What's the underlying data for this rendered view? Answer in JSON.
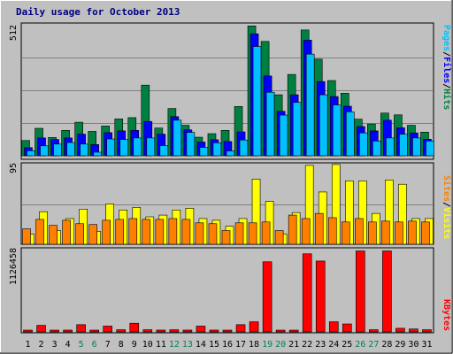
{
  "title": "Daily usage for October 2013",
  "colors": {
    "background": "#c0c0c0",
    "panel": "#c0c0c0",
    "grid": "#808080",
    "pages": "#008040",
    "files": "#0000ff",
    "hits": "#00c0ff",
    "visits": "#ffff00",
    "sites": "#ff8000",
    "kbytes": "#ff0000",
    "weekday": "#000000",
    "weekend": "#00805c",
    "title": "#000080"
  },
  "legend": {
    "top": [
      {
        "label": "Pages",
        "color": "#00c0ff"
      },
      {
        "label": "/",
        "color": "#000000"
      },
      {
        "label": "Files",
        "color": "#0000ff"
      },
      {
        "label": "/",
        "color": "#000000"
      },
      {
        "label": "Hits",
        "color": "#008040"
      }
    ],
    "mid": [
      {
        "label": "Sites",
        "color": "#ff8000"
      },
      {
        "label": "/",
        "color": "#000000"
      },
      {
        "label": "Visits",
        "color": "#ffff00"
      }
    ],
    "bottom": [
      {
        "label": "KBytes",
        "color": "#ff0000"
      }
    ]
  },
  "chart_data": [
    {
      "type": "bar",
      "panel": "top",
      "ytick": "512",
      "ylim": [
        0,
        512
      ],
      "categories": [
        "1",
        "2",
        "3",
        "4",
        "5",
        "6",
        "7",
        "8",
        "9",
        "10",
        "11",
        "12",
        "13",
        "14",
        "15",
        "16",
        "17",
        "18",
        "19",
        "20",
        "21",
        "22",
        "23",
        "24",
        "25",
        "26",
        "27",
        "28",
        "29",
        "30",
        "31"
      ],
      "weekend": [
        5,
        6,
        12,
        13,
        19,
        20,
        26,
        27
      ],
      "series": [
        {
          "name": "Hits",
          "values": [
            60,
            108,
            72,
            100,
            132,
            96,
            117,
            145,
            150,
            278,
            109,
            186,
            120,
            73,
            87,
            100,
            194,
            511,
            450,
            240,
            320,
            495,
            380,
            296,
            246,
            144,
            125,
            168,
            161,
            120,
            93
          ]
        },
        {
          "name": "Files",
          "values": [
            32,
            70,
            64,
            70,
            85,
            44,
            91,
            98,
            100,
            135,
            85,
            154,
            102,
            54,
            63,
            56,
            94,
            480,
            314,
            175,
            240,
            455,
            292,
            233,
            195,
            115,
            98,
            140,
            110,
            90,
            65
          ]
        },
        {
          "name": "Pages",
          "values": [
            20,
            39,
            46,
            52,
            46,
            14,
            66,
            64,
            70,
            70,
            40,
            140,
            92,
            33,
            51,
            19,
            62,
            430,
            250,
            160,
            210,
            400,
            240,
            200,
            173,
            90,
            58,
            70,
            85,
            70,
            58
          ]
        }
      ]
    },
    {
      "type": "bar",
      "panel": "middle",
      "ytick": "95",
      "ylim": [
        0,
        95
      ],
      "categories": [
        "1",
        "2",
        "3",
        "4",
        "5",
        "6",
        "7",
        "8",
        "9",
        "10",
        "11",
        "12",
        "13",
        "14",
        "15",
        "16",
        "17",
        "18",
        "19",
        "20",
        "21",
        "22",
        "23",
        "24",
        "25",
        "26",
        "27",
        "28",
        "29",
        "30",
        "31"
      ],
      "series": [
        {
          "name": "Visits",
          "values": [
            12,
            38,
            16,
            30,
            41,
            15,
            47,
            40,
            43,
            32,
            34,
            40,
            42,
            30,
            28,
            21,
            30,
            76,
            50,
            12,
            37,
            92,
            61,
            93,
            74,
            74,
            36,
            75,
            70,
            30,
            30
          ]
        },
        {
          "name": "Sites",
          "values": [
            18,
            29,
            22,
            28,
            24,
            23,
            28,
            29,
            30,
            29,
            29,
            30,
            29,
            25,
            24,
            16,
            25,
            25,
            26,
            16,
            34,
            30,
            36,
            31,
            26,
            30,
            26,
            27,
            26,
            27,
            26
          ]
        }
      ]
    },
    {
      "type": "bar",
      "panel": "bottom",
      "ytick": "1126458",
      "ylim": [
        0,
        1126458
      ],
      "categories": [
        "1",
        "2",
        "3",
        "4",
        "5",
        "6",
        "7",
        "8",
        "9",
        "10",
        "11",
        "12",
        "13",
        "14",
        "15",
        "16",
        "17",
        "18",
        "19",
        "20",
        "21",
        "22",
        "23",
        "24",
        "25",
        "26",
        "27",
        "28",
        "29",
        "30",
        "31"
      ],
      "series": [
        {
          "name": "KBytes",
          "values": [
            20000,
            90000,
            20000,
            25000,
            100000,
            20000,
            80000,
            30000,
            120000,
            30000,
            25000,
            30000,
            25000,
            80000,
            25000,
            20000,
            100000,
            140000,
            970000,
            20000,
            20000,
            1080000,
            980000,
            140000,
            110000,
            1120000,
            30000,
            1120000,
            50000,
            40000,
            30000
          ]
        }
      ]
    }
  ]
}
